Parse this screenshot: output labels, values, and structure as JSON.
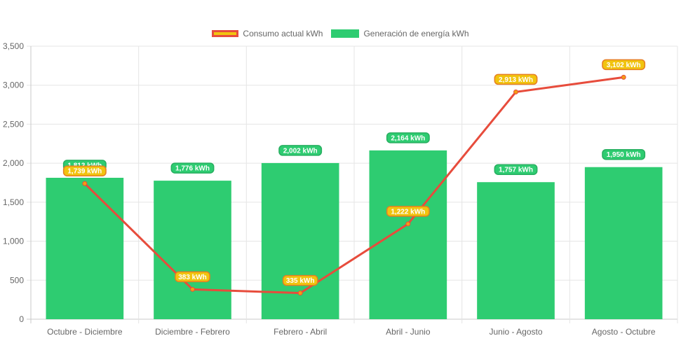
{
  "legend": {
    "line_label": "Consumo actual kWh",
    "bar_label": "Generación de energía kWh"
  },
  "colors": {
    "bar": "#2ecc71",
    "line": "#e74c3c",
    "point": "#f39c12",
    "line_label_bg": "#f1c40f",
    "line_label_border": "#e67e22",
    "bar_label_border": "#27ae60",
    "grid": "#e5e5e5",
    "tick_text": "#666666"
  },
  "chart_data": {
    "type": "bar",
    "categories": [
      "Octubre - Diciembre",
      "Diciembre - Febrero",
      "Febrero - Abril",
      "Abril - Junio",
      "Junio - Agosto",
      "Agosto - Octubre"
    ],
    "series": [
      {
        "name": "Generación de energía kWh",
        "type": "bar",
        "values": [
          1813,
          1776,
          2002,
          2164,
          1757,
          1950
        ],
        "labels": [
          "1,813 kWh",
          "1,776 kWh",
          "2,002 kWh",
          "2,164 kWh",
          "1,757 kWh",
          "1,950 kWh"
        ]
      },
      {
        "name": "Consumo actual kWh",
        "type": "line",
        "values": [
          1739,
          383,
          335,
          1222,
          2913,
          3102
        ],
        "labels": [
          "1,739 kWh",
          "383 kWh",
          "335 kWh",
          "1,222 kWh",
          "2,913 kWh",
          "3,102 kWh"
        ]
      }
    ],
    "y_ticks": [
      "0",
      "500",
      "1,000",
      "1,500",
      "2,000",
      "2,500",
      "3,000",
      "3,500"
    ],
    "ylim": [
      0,
      3500
    ],
    "grid": true,
    "legend_position": "top-center"
  }
}
